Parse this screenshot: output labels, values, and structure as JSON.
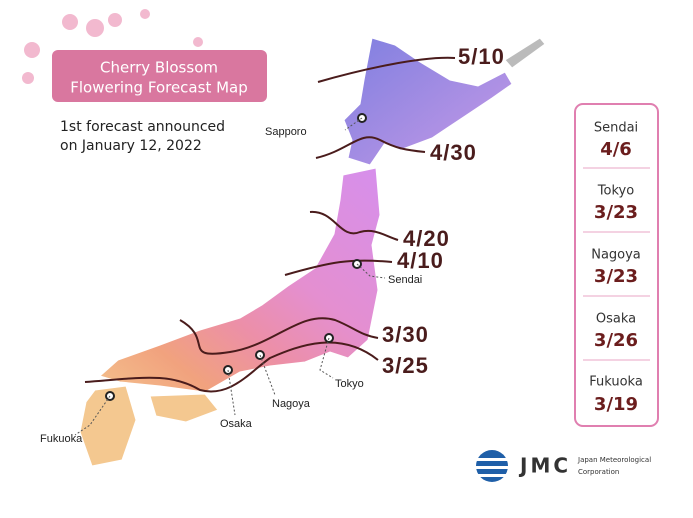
{
  "header": {
    "title": [
      "Cherry Blossom",
      "Flowering Forecast Map"
    ],
    "subtitle": [
      "1st forecast announced",
      "on January 12, 2022"
    ]
  },
  "map": {
    "cities": [
      "Sapporo",
      "Sendai",
      "Tokyo",
      "Nagoya",
      "Osaka",
      "Fukuoka"
    ],
    "isolines": [
      "5/10",
      "4/30",
      "4/20",
      "4/10",
      "3/30",
      "3/25"
    ]
  },
  "forecast_panel": {
    "entries": [
      {
        "city": "Sendai",
        "date": "4/6"
      },
      {
        "city": "Tokyo",
        "date": "3/23"
      },
      {
        "city": "Nagoya",
        "date": "3/23"
      },
      {
        "city": "Osaka",
        "date": "3/26"
      },
      {
        "city": "Fukuoka",
        "date": "3/19"
      }
    ]
  },
  "logo": {
    "mark": "JMC",
    "name": [
      "Japan Meteorological",
      "Corporation"
    ]
  }
}
